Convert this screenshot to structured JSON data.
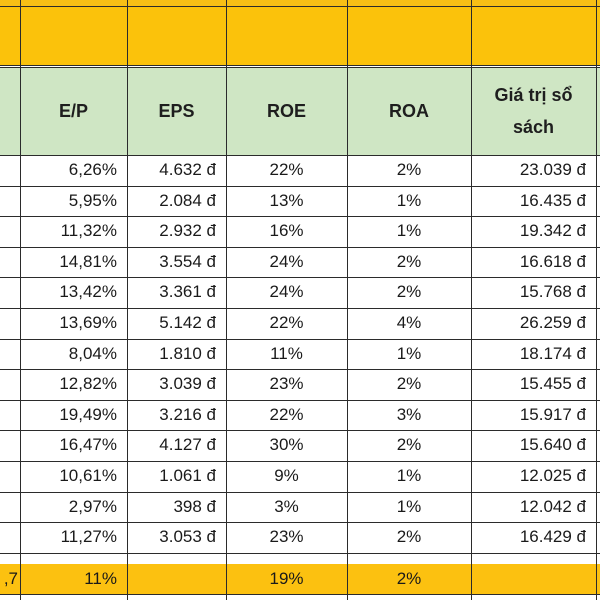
{
  "header": {
    "ep": "E/P",
    "eps": "EPS",
    "roe": "ROE",
    "roa": "ROA",
    "book_value_line1": "Giá trị sổ",
    "book_value_line2": "sách"
  },
  "rows": [
    {
      "ep": "6,26%",
      "eps": "4.632 đ",
      "roe": "22%",
      "roa": "2%",
      "bv": "23.039 đ"
    },
    {
      "ep": "5,95%",
      "eps": "2.084 đ",
      "roe": "13%",
      "roa": "1%",
      "bv": "16.435 đ"
    },
    {
      "ep": "11,32%",
      "eps": "2.932 đ",
      "roe": "16%",
      "roa": "1%",
      "bv": "19.342 đ"
    },
    {
      "ep": "14,81%",
      "eps": "3.554 đ",
      "roe": "24%",
      "roa": "2%",
      "bv": "16.618 đ"
    },
    {
      "ep": "13,42%",
      "eps": "3.361 đ",
      "roe": "24%",
      "roa": "2%",
      "bv": "15.768 đ"
    },
    {
      "ep": "13,69%",
      "eps": "5.142 đ",
      "roe": "22%",
      "roa": "4%",
      "bv": "26.259 đ"
    },
    {
      "ep": "8,04%",
      "eps": "1.810 đ",
      "roe": "11%",
      "roa": "1%",
      "bv": "18.174 đ"
    },
    {
      "ep": "12,82%",
      "eps": "3.039 đ",
      "roe": "23%",
      "roa": "2%",
      "bv": "15.455 đ"
    },
    {
      "ep": "19,49%",
      "eps": "3.216 đ",
      "roe": "22%",
      "roa": "3%",
      "bv": "15.917 đ"
    },
    {
      "ep": "16,47%",
      "eps": "4.127 đ",
      "roe": "30%",
      "roa": "2%",
      "bv": "15.640 đ"
    },
    {
      "ep": "10,61%",
      "eps": "1.061 đ",
      "roe": "9%",
      "roa": "1%",
      "bv": "12.025 đ"
    },
    {
      "ep": "2,97%",
      "eps": "398 đ",
      "roe": "3%",
      "roa": "1%",
      "bv": "12.042 đ"
    },
    {
      "ep": "11,27%",
      "eps": "3.053 đ",
      "roe": "23%",
      "roa": "2%",
      "bv": "16.429 đ"
    }
  ],
  "footer": {
    "left_partial": ",7",
    "ep": "11%",
    "roe": "19%",
    "roa": "2%"
  },
  "colors": {
    "header_fill": "#cfe6c4",
    "band_fill": "#fbc20b",
    "footer_fill": "#fcc110",
    "grid_line": "#2b2b2b"
  }
}
